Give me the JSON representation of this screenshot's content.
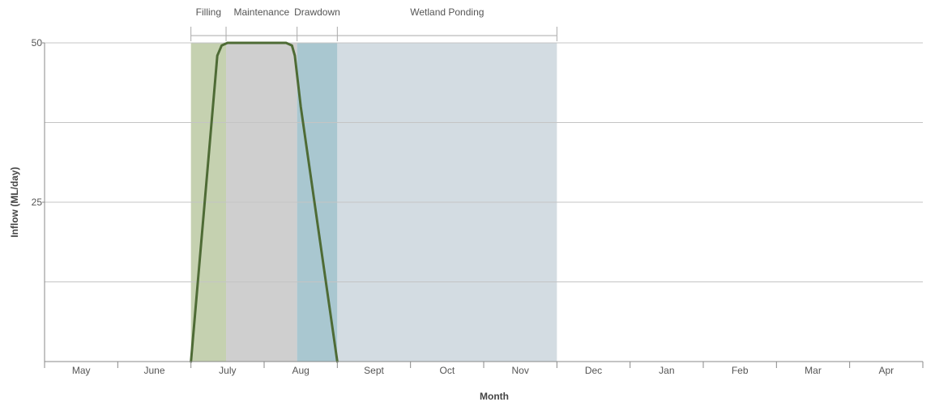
{
  "chart_data": {
    "type": "area",
    "xlabel": "Month",
    "ylabel": "Inflow (ML/day)",
    "ylim": [
      0,
      50
    ],
    "y_ticks": [
      0,
      12.5,
      25,
      37.5,
      50
    ],
    "y_tick_labels": [
      {
        "value": 25,
        "label": "25"
      },
      {
        "value": 50,
        "label": "50"
      }
    ],
    "months": [
      "May",
      "June",
      "July",
      "Aug",
      "Sept",
      "Oct",
      "Nov",
      "Dec",
      "Jan",
      "Feb",
      "Mar",
      "Apr"
    ],
    "x_range": [
      0,
      12
    ],
    "phases": [
      {
        "label": "Filling",
        "start": 2.0,
        "end": 2.48,
        "color": "#c5d1b0"
      },
      {
        "label": "Maintenance",
        "start": 2.48,
        "end": 3.45,
        "color": "#cfcfcf"
      },
      {
        "label": "Drawdown",
        "start": 3.45,
        "end": 4.0,
        "color": "#a9c7d0"
      },
      {
        "label": "Wetland Ponding",
        "start": 4.0,
        "end": 7.0,
        "color": "#d3dce2"
      }
    ],
    "series": [
      {
        "line_color": "#4e6b35",
        "x": [
          2.0,
          2.3,
          2.36,
          2.42,
          2.5,
          3.3,
          3.38,
          3.42,
          3.5,
          4.0
        ],
        "values": [
          0,
          40,
          48,
          49.6,
          50,
          50,
          49.6,
          48,
          40,
          0
        ]
      }
    ],
    "grid": true
  }
}
